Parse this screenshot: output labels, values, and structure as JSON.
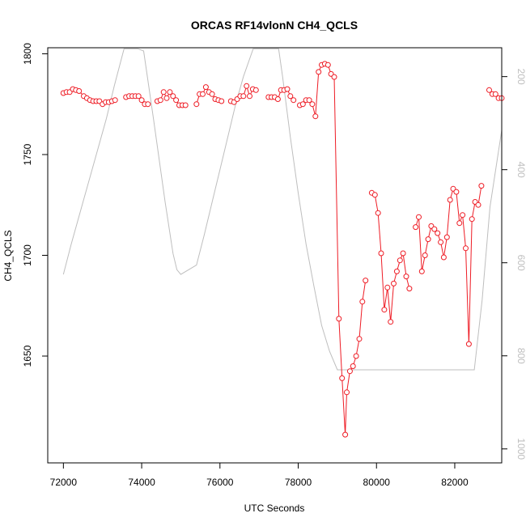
{
  "chart_data": {
    "type": "line",
    "title": "ORCAS RF14vlonN CH4_QCLS",
    "xlabel": "UTC Seconds",
    "ylabel": "CH4_QCLS",
    "xlim": [
      71600,
      83200
    ],
    "ylim": [
      1597,
      1803
    ],
    "x_ticks": [
      72000,
      74000,
      76000,
      78000,
      80000,
      82000
    ],
    "y_ticks": [
      1650,
      1700,
      1750,
      1800
    ],
    "colors": {
      "primary": "#ee1c25",
      "secondary": "#bebebe",
      "axis": "#000000"
    },
    "grid": false,
    "legend": "none",
    "series": [
      {
        "color": "#ee1c25",
        "style": "line-points",
        "points": [
          [
            72000,
            1780.5
          ],
          [
            72080,
            1781
          ],
          [
            72160,
            1781
          ],
          [
            72240,
            1782.5
          ],
          [
            72320,
            1782
          ],
          [
            72400,
            1781.5
          ],
          [
            72520,
            1779
          ],
          [
            72600,
            1778
          ],
          [
            72680,
            1777
          ],
          [
            72760,
            1776.5
          ],
          [
            72840,
            1776.5
          ],
          [
            72920,
            1776.5
          ],
          [
            73000,
            1775
          ],
          [
            73080,
            1776
          ],
          [
            73160,
            1776
          ],
          [
            73240,
            1776.5
          ],
          [
            73320,
            1777
          ],
          [
            73600,
            1778.5
          ],
          [
            73680,
            1779
          ],
          [
            73760,
            1779
          ],
          [
            73840,
            1779
          ],
          [
            73920,
            1779
          ],
          [
            74000,
            1777
          ],
          [
            74080,
            1775
          ],
          [
            74160,
            1775
          ],
          [
            74400,
            1776.5
          ],
          [
            74480,
            1777
          ],
          [
            74560,
            1781
          ],
          [
            74640,
            1778
          ],
          [
            74720,
            1781
          ],
          [
            74800,
            1779
          ],
          [
            74880,
            1777
          ],
          [
            74960,
            1774.5
          ],
          [
            75040,
            1774.5
          ],
          [
            75120,
            1774.5
          ],
          [
            75400,
            1775
          ],
          [
            75480,
            1780
          ],
          [
            75560,
            1780
          ],
          [
            75640,
            1783.5
          ],
          [
            75720,
            1781
          ],
          [
            75800,
            1780
          ],
          [
            75880,
            1777.5
          ],
          [
            75960,
            1777
          ],
          [
            76040,
            1776.5
          ],
          [
            76280,
            1776.5
          ],
          [
            76360,
            1776
          ],
          [
            76440,
            1777.5
          ],
          [
            76520,
            1779
          ],
          [
            76600,
            1779
          ],
          [
            76680,
            1784
          ],
          [
            76760,
            1779
          ],
          [
            76840,
            1782.5
          ],
          [
            76920,
            1782
          ],
          [
            77240,
            1778.5
          ],
          [
            77320,
            1778.5
          ],
          [
            77400,
            1778.5
          ],
          [
            77480,
            1777.5
          ],
          [
            77560,
            1782
          ],
          [
            77640,
            1782
          ],
          [
            77720,
            1782.5
          ],
          [
            77800,
            1779
          ],
          [
            77880,
            1777
          ],
          [
            78040,
            1774.5
          ],
          [
            78120,
            1775
          ],
          [
            78200,
            1777
          ],
          [
            78280,
            1777
          ],
          [
            78360,
            1775
          ],
          [
            78440,
            1769
          ],
          [
            78520,
            1791
          ],
          [
            78600,
            1794.5
          ],
          [
            78680,
            1795
          ],
          [
            78760,
            1794.5
          ],
          [
            78840,
            1790
          ],
          [
            78920,
            1788.5
          ],
          [
            79040,
            1668.5
          ],
          [
            79120,
            1639
          ],
          [
            79200,
            1611
          ],
          [
            79240,
            1632
          ],
          [
            79320,
            1642.5
          ],
          [
            79400,
            1645
          ],
          [
            79480,
            1650
          ],
          [
            79560,
            1658.5
          ],
          [
            79640,
            1677
          ],
          [
            79720,
            1687.5
          ],
          [
            79880,
            1731
          ],
          [
            79960,
            1730
          ],
          [
            80040,
            1721
          ],
          [
            80120,
            1701
          ],
          [
            80200,
            1673
          ],
          [
            80280,
            1684
          ],
          [
            80360,
            1667
          ],
          [
            80440,
            1686
          ],
          [
            80520,
            1692
          ],
          [
            80600,
            1697.5
          ],
          [
            80680,
            1701
          ],
          [
            80760,
            1689.5
          ],
          [
            80840,
            1683.5
          ],
          [
            81000,
            1714
          ],
          [
            81080,
            1719
          ],
          [
            81160,
            1692
          ],
          [
            81240,
            1700
          ],
          [
            81320,
            1708
          ],
          [
            81400,
            1714.5
          ],
          [
            81480,
            1713
          ],
          [
            81560,
            1711
          ],
          [
            81640,
            1706.5
          ],
          [
            81720,
            1699
          ],
          [
            81800,
            1709
          ],
          [
            81880,
            1727.5
          ],
          [
            81960,
            1733
          ],
          [
            82040,
            1731.5
          ],
          [
            82120,
            1716
          ],
          [
            82200,
            1720
          ],
          [
            82280,
            1703.5
          ],
          [
            82360,
            1656
          ],
          [
            82440,
            1718
          ],
          [
            82520,
            1726.5
          ],
          [
            82600,
            1725
          ],
          [
            82680,
            1734.5
          ],
          [
            82880,
            1782
          ],
          [
            82960,
            1780
          ],
          [
            83040,
            1780
          ],
          [
            83120,
            1778
          ],
          [
            83200,
            1778
          ]
        ]
      },
      {
        "color": "#bebebe",
        "style": "line",
        "right_axis": {
          "ticks": [
            200,
            400,
            600,
            800,
            1000
          ],
          "range": [
            138,
            1030
          ]
        },
        "points": [
          [
            72000,
            625
          ],
          [
            72200,
            560
          ],
          [
            72500,
            470
          ],
          [
            72800,
            380
          ],
          [
            73100,
            290
          ],
          [
            73300,
            220
          ],
          [
            73550,
            140
          ],
          [
            73900,
            140
          ],
          [
            74050,
            145
          ],
          [
            74300,
            290
          ],
          [
            74600,
            470
          ],
          [
            74800,
            580
          ],
          [
            74900,
            615
          ],
          [
            75000,
            625
          ],
          [
            75200,
            615
          ],
          [
            75400,
            605
          ],
          [
            75600,
            540
          ],
          [
            75800,
            470
          ],
          [
            76000,
            400
          ],
          [
            76200,
            330
          ],
          [
            76400,
            260
          ],
          [
            76600,
            200
          ],
          [
            76850,
            140
          ],
          [
            77500,
            140
          ],
          [
            77600,
            200
          ],
          [
            77800,
            330
          ],
          [
            78000,
            450
          ],
          [
            78200,
            560
          ],
          [
            78400,
            650
          ],
          [
            78600,
            735
          ],
          [
            78800,
            790
          ],
          [
            79000,
            830
          ],
          [
            79200,
            830
          ],
          [
            80000,
            830
          ],
          [
            81000,
            830
          ],
          [
            82000,
            830
          ],
          [
            82500,
            830
          ],
          [
            82700,
            680
          ],
          [
            82900,
            480
          ],
          [
            83200,
            315
          ]
        ]
      }
    ]
  }
}
